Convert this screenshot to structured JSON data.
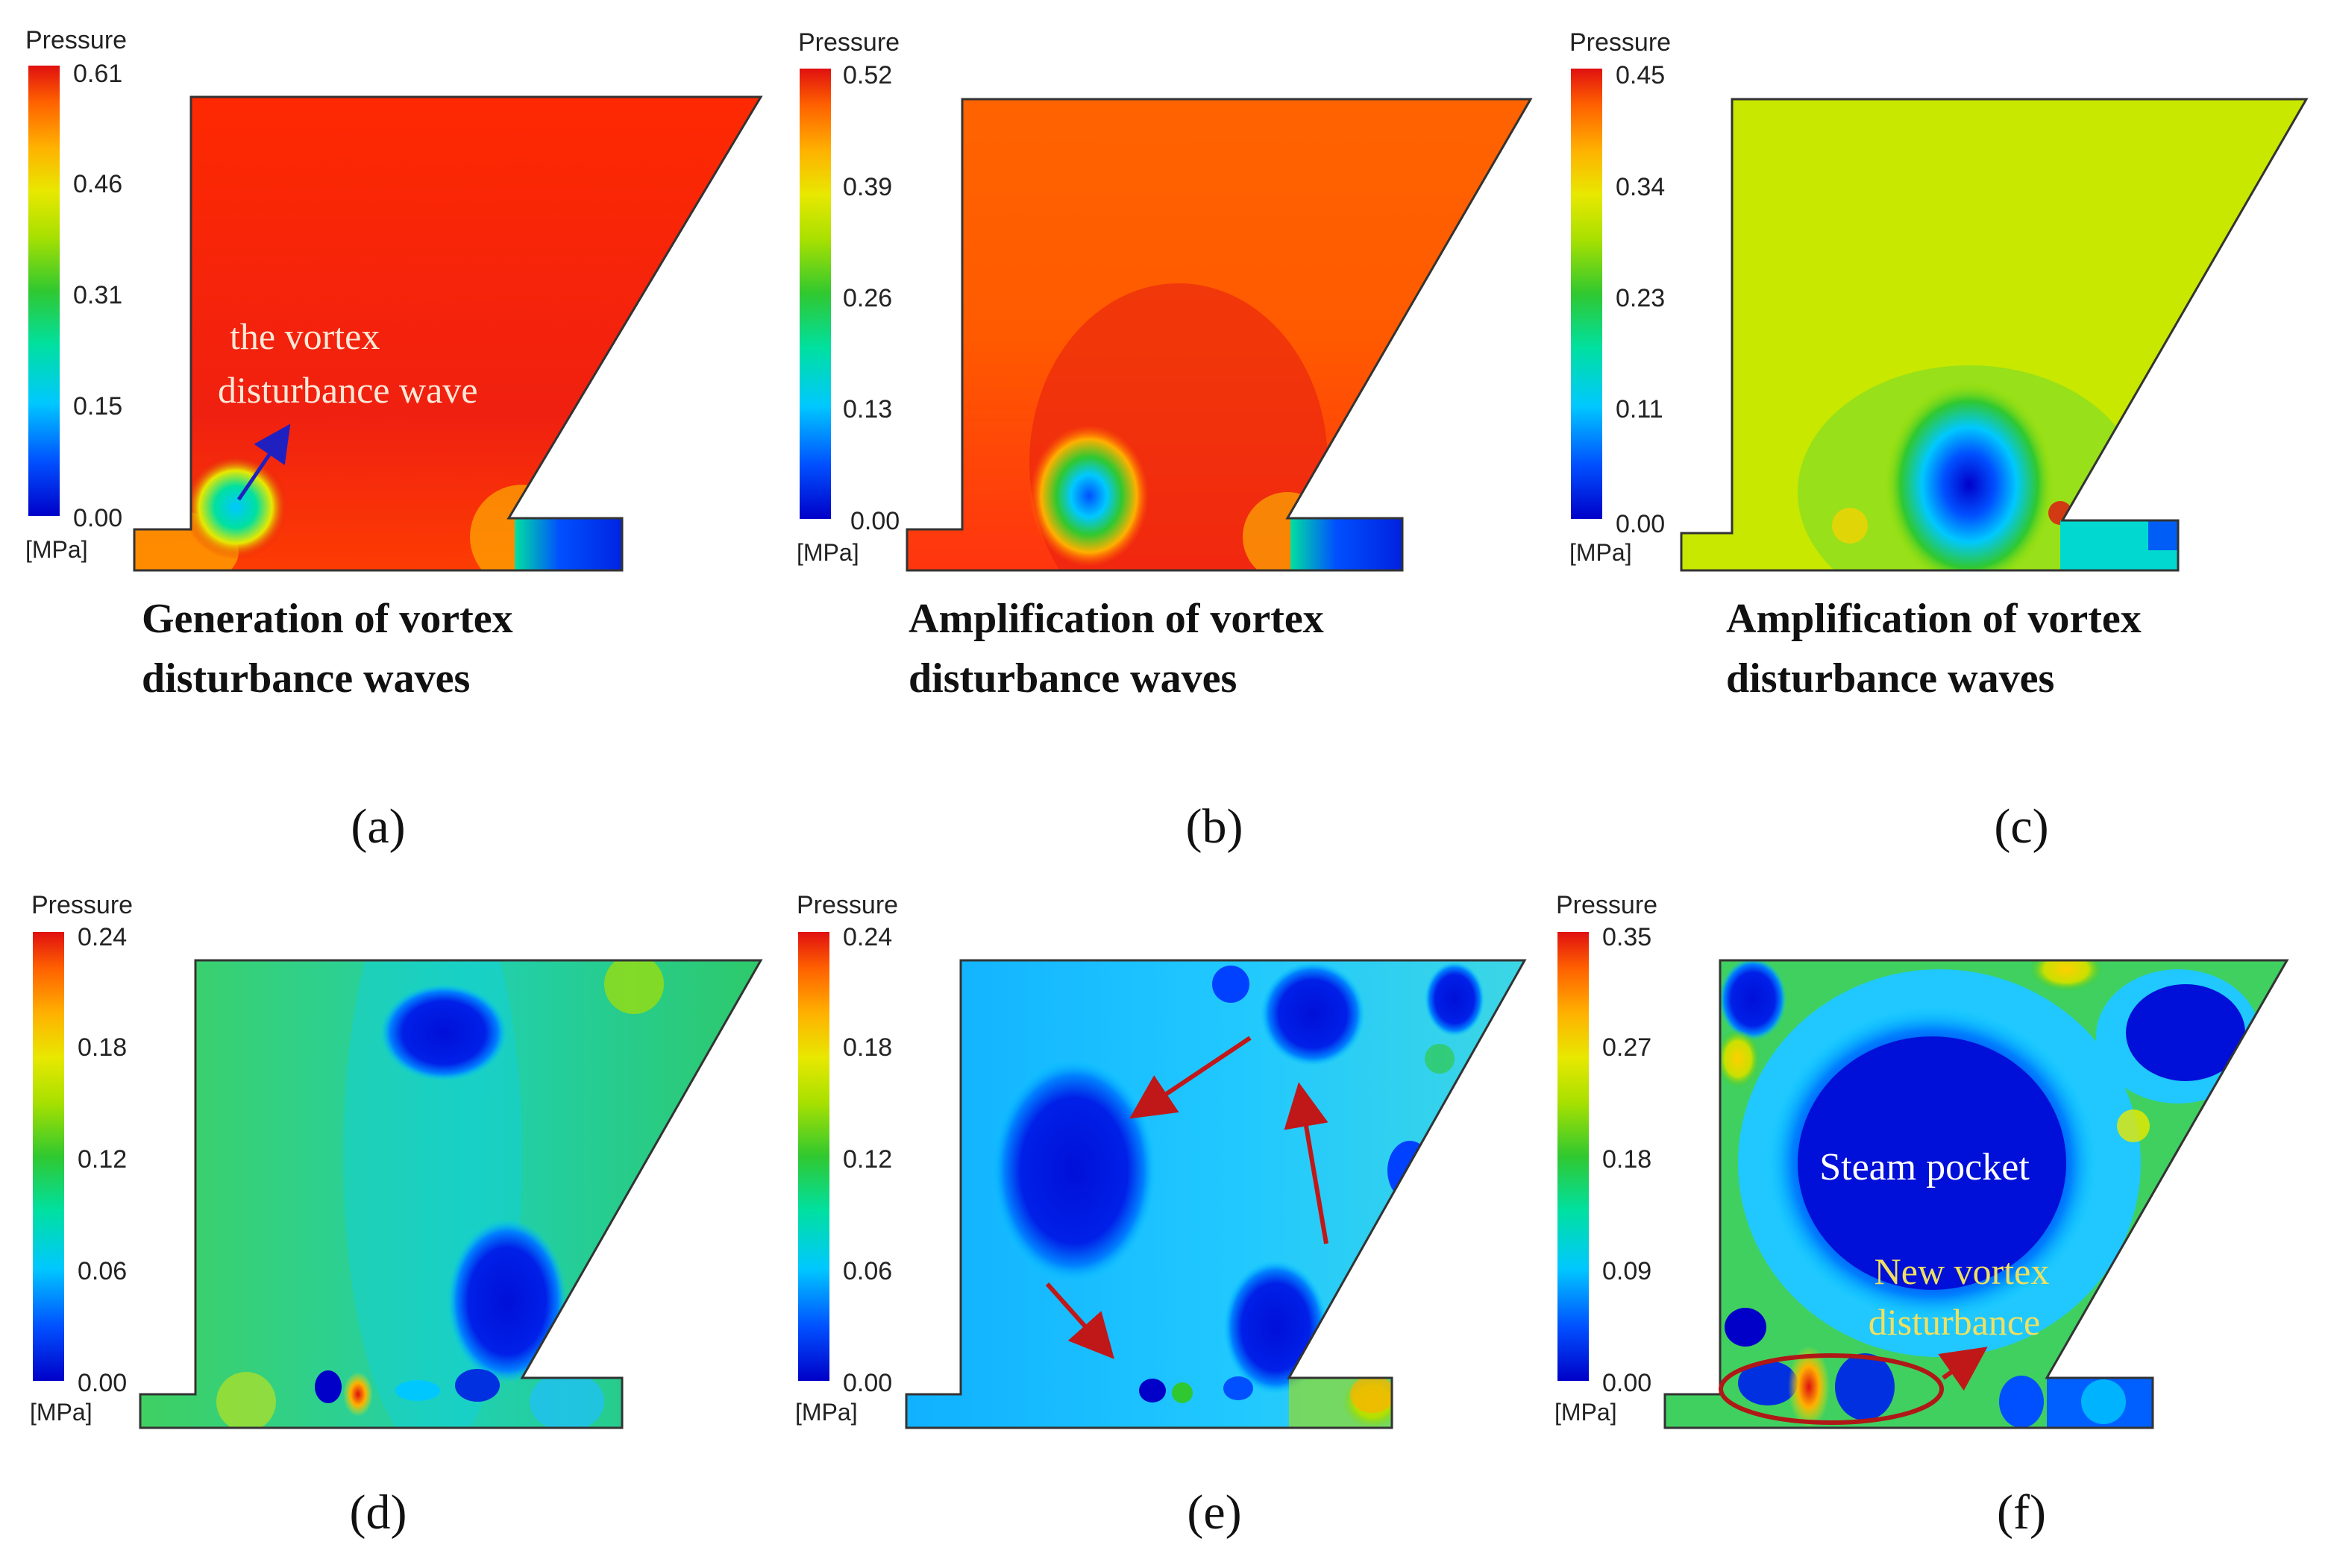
{
  "colorbar_title": "Pressure",
  "unit_label": "[MPa]",
  "colormap": [
    "#0000c8",
    "#0050ff",
    "#00c8ff",
    "#00e0a0",
    "#30c830",
    "#a8e000",
    "#e8e800",
    "#ffb000",
    "#ff6000",
    "#e01010"
  ],
  "panels": [
    {
      "id": "a",
      "letter": "(a)",
      "caption_lines": [
        "Generation of vortex",
        "disturbance waves"
      ],
      "scale_ticks": [
        "0.61",
        "0.46",
        "0.31",
        "0.15",
        "0.00"
      ],
      "annotations": {
        "text_1": "the vortex",
        "text_2": "disturbance wave"
      }
    },
    {
      "id": "b",
      "letter": "(b)",
      "caption_lines": [
        "Amplification of vortex",
        "disturbance waves"
      ],
      "scale_ticks": [
        "0.52",
        "0.39",
        "0.26",
        "0.13",
        "0.00"
      ]
    },
    {
      "id": "c",
      "letter": "(c)",
      "caption_lines": [
        "Amplification of vortex",
        "disturbance waves"
      ],
      "scale_ticks": [
        "0.45",
        "0.34",
        "0.23",
        "0.11",
        "0.00"
      ]
    },
    {
      "id": "d",
      "letter": "(d)",
      "scale_ticks": [
        "0.24",
        "0.18",
        "0.12",
        "0.06",
        "0.00"
      ]
    },
    {
      "id": "e",
      "letter": "(e)",
      "scale_ticks": [
        "0.24",
        "0.18",
        "0.12",
        "0.06",
        "0.00"
      ]
    },
    {
      "id": "f",
      "letter": "(f)",
      "scale_ticks": [
        "0.35",
        "0.27",
        "0.18",
        "0.09",
        "0.00"
      ],
      "annotations": {
        "steam_pocket": "Steam pocket",
        "new_vortex_1": "New vortex",
        "new_vortex_2": "disturbance"
      }
    }
  ]
}
